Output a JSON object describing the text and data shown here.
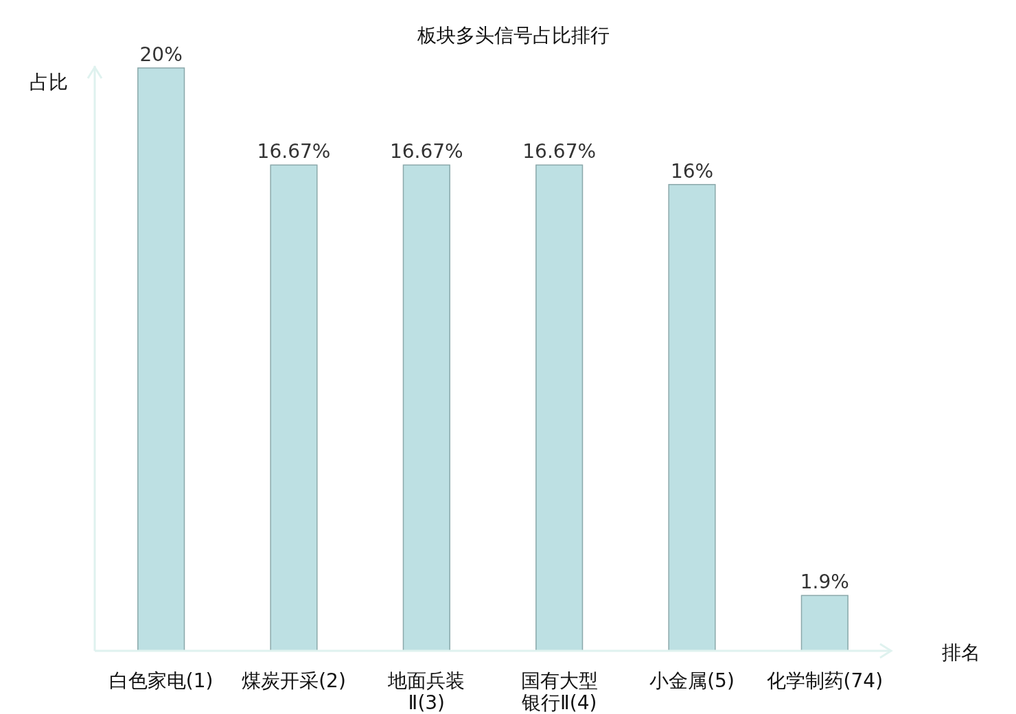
{
  "chart_data": {
    "type": "bar",
    "title": "板块多头信号占比排行",
    "xlabel": "排名",
    "ylabel": "占比",
    "categories": [
      "白色家电(1)",
      "煤炭开采(2)",
      "地面兵装Ⅱ(3)",
      "国有大型银行Ⅱ(4)",
      "小金属(5)",
      "化学制药(74)"
    ],
    "values": [
      20,
      16.67,
      16.67,
      16.67,
      16,
      1.9
    ],
    "value_labels": [
      "20%",
      "16.67%",
      "16.67%",
      "16.67%",
      "16%",
      "1.9%"
    ],
    "color": "#bde0e3"
  }
}
